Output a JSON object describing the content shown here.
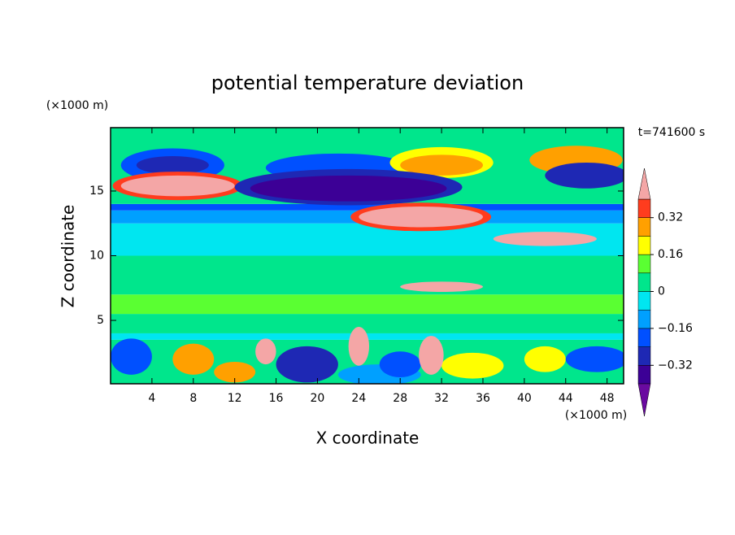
{
  "chart_data": {
    "type": "contour",
    "title": "potential temperature deviation",
    "xlabel": "X coordinate",
    "ylabel": "Z coordinate",
    "x_unit": "(×1000 m)",
    "y_unit": "(×1000 m)",
    "annotation": "t=741600 s",
    "xlim": [
      0,
      49.6
    ],
    "ylim": [
      0.1,
      19.9
    ],
    "xticks": [
      4,
      8,
      12,
      16,
      20,
      24,
      28,
      32,
      36,
      40,
      44,
      48
    ],
    "yticks": [
      5,
      10,
      15
    ],
    "levels": [
      -0.4,
      -0.32,
      -0.24,
      -0.16,
      -0.08,
      0,
      0.08,
      0.16,
      0.24,
      0.32,
      0.4
    ],
    "colors": [
      "#6a0aa0",
      "#3c0096",
      "#1e28b4",
      "#0050ff",
      "#00a0ff",
      "#00e6f0",
      "#00e68c",
      "#5aff32",
      "#ffff00",
      "#ffa000",
      "#ff3c1e",
      "#f4a6a6"
    ],
    "colorbar_ticks": [
      {
        "value": -0.32,
        "label": "−0.32"
      },
      {
        "value": -0.16,
        "label": "−0.16"
      },
      0,
      0.16,
      0.32
    ],
    "layers": [
      {
        "z0": 0.1,
        "z1": 3.5,
        "value": 0.04
      },
      {
        "z0": 3.5,
        "z1": 4,
        "value": -0.06
      },
      {
        "z0": 4,
        "z1": 5.5,
        "value": 0.04
      },
      {
        "z0": 5.5,
        "z1": 7,
        "value": 0.1
      },
      {
        "z0": 7,
        "z1": 10,
        "value": 0.04
      },
      {
        "z0": 10,
        "z1": 12.5,
        "value": -0.06
      },
      {
        "z0": 12.5,
        "z1": 13.5,
        "value": -0.1
      },
      {
        "z0": 13.5,
        "z1": 14,
        "value": -0.18
      },
      {
        "z0": 14,
        "z1": 19.9,
        "value": 0.04
      }
    ],
    "blobs": [
      {
        "x": 6,
        "z": 17,
        "rx": 5,
        "rz": 1.3,
        "value": -0.2
      },
      {
        "x": 6,
        "z": 17,
        "rx": 3.5,
        "rz": 0.7,
        "value": -0.3
      },
      {
        "x": 22,
        "z": 16.8,
        "rx": 7,
        "rz": 1.1,
        "value": -0.22
      },
      {
        "x": 32,
        "z": 17.2,
        "rx": 5,
        "rz": 1.2,
        "value": 0.2
      },
      {
        "x": 32,
        "z": 17,
        "rx": 4,
        "rz": 0.8,
        "value": 0.28
      },
      {
        "x": 45,
        "z": 17.4,
        "rx": 4.5,
        "rz": 1.1,
        "value": 0.28
      },
      {
        "x": 46,
        "z": 16.2,
        "rx": 4,
        "rz": 1,
        "value": -0.3
      },
      {
        "x": 6.5,
        "z": 15.4,
        "rx": 6.3,
        "rz": 1.1,
        "value": 0.36
      },
      {
        "x": 6.5,
        "z": 15.4,
        "rx": 5.5,
        "rz": 0.8,
        "value": 0.45
      },
      {
        "x": 23,
        "z": 15.3,
        "rx": 11,
        "rz": 1.4,
        "value": -0.28
      },
      {
        "x": 23,
        "z": 15.2,
        "rx": 9.5,
        "rz": 1,
        "value": -0.36
      },
      {
        "x": 30,
        "z": 13,
        "rx": 6.8,
        "rz": 1.1,
        "value": 0.36
      },
      {
        "x": 30,
        "z": 13,
        "rx": 6,
        "rz": 0.8,
        "value": 0.45
      },
      {
        "x": 42,
        "z": 11.3,
        "rx": 5,
        "rz": 0.55,
        "value": 0.45
      },
      {
        "x": 32,
        "z": 7.6,
        "rx": 4,
        "rz": 0.4,
        "value": 0.45
      },
      {
        "x": 2,
        "z": 2.2,
        "rx": 2,
        "rz": 1.4,
        "value": -0.22
      },
      {
        "x": 8,
        "z": 2,
        "rx": 2,
        "rz": 1.2,
        "value": 0.28
      },
      {
        "x": 12,
        "z": 1,
        "rx": 2,
        "rz": 0.8,
        "value": 0.28
      },
      {
        "x": 19,
        "z": 1.6,
        "rx": 3,
        "rz": 1.4,
        "value": -0.3
      },
      {
        "x": 26,
        "z": 0.8,
        "rx": 4,
        "rz": 0.8,
        "value": -0.1
      },
      {
        "x": 28,
        "z": 1.6,
        "rx": 2,
        "rz": 1,
        "value": -0.22
      },
      {
        "x": 35,
        "z": 1.5,
        "rx": 3,
        "rz": 1,
        "value": 0.2
      },
      {
        "x": 42,
        "z": 2,
        "rx": 2,
        "rz": 1,
        "value": 0.2
      },
      {
        "x": 47,
        "z": 2,
        "rx": 3,
        "rz": 1,
        "value": -0.22
      },
      {
        "x": 15,
        "z": 2.6,
        "rx": 1,
        "rz": 1,
        "value": 0.45
      },
      {
        "x": 24,
        "z": 3,
        "rx": 1,
        "rz": 1.5,
        "value": 0.45
      },
      {
        "x": 31,
        "z": 2.3,
        "rx": 1.2,
        "rz": 1.5,
        "value": 0.45
      }
    ]
  }
}
